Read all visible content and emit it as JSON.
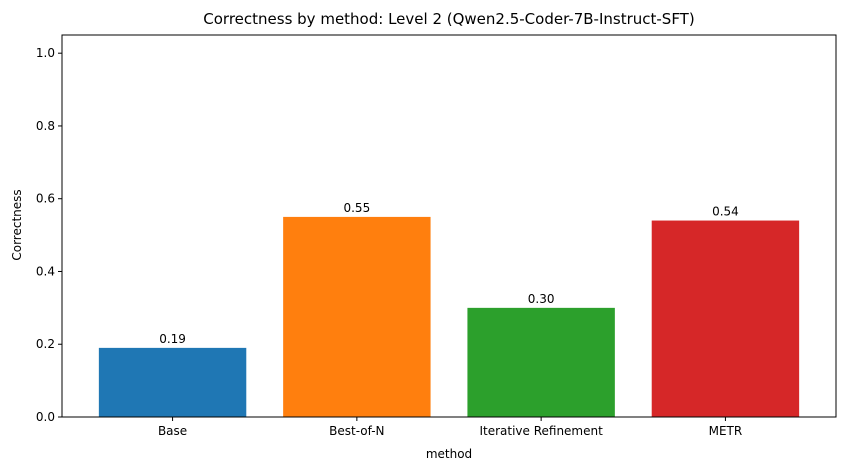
{
  "chart_data": {
    "type": "bar",
    "title": "Correctness by method: Level 2 (Qwen2.5-Coder-7B-Instruct-SFT)",
    "xlabel": "method",
    "ylabel": "Correctness",
    "categories": [
      "Base",
      "Best-of-N",
      "Iterative Refinement",
      "METR"
    ],
    "values": [
      0.19,
      0.55,
      0.3,
      0.54
    ],
    "value_labels": [
      "0.19",
      "0.55",
      "0.30",
      "0.54"
    ],
    "colors": [
      "#1f77b4",
      "#ff7f0e",
      "#2ca02c",
      "#d62728"
    ],
    "ylim": [
      0,
      1.05
    ],
    "yticks": [
      0.0,
      0.2,
      0.4,
      0.6,
      0.8,
      1.0
    ],
    "ytick_labels": [
      "0.0",
      "0.2",
      "0.4",
      "0.6",
      "0.8",
      "1.0"
    ],
    "grid": false,
    "legend": "none"
  }
}
